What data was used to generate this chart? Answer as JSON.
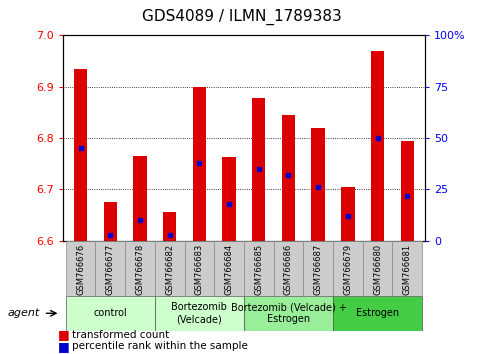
{
  "title": "GDS4089 / ILMN_1789383",
  "samples": [
    "GSM766676",
    "GSM766677",
    "GSM766678",
    "GSM766682",
    "GSM766683",
    "GSM766684",
    "GSM766685",
    "GSM766686",
    "GSM766687",
    "GSM766679",
    "GSM766680",
    "GSM766681"
  ],
  "transformed_count": [
    6.935,
    6.675,
    6.765,
    6.655,
    6.9,
    6.763,
    6.878,
    6.845,
    6.82,
    6.705,
    6.97,
    6.795
  ],
  "percentile_rank": [
    45,
    3,
    10,
    3,
    38,
    18,
    35,
    32,
    26,
    12,
    50,
    22
  ],
  "ylim_left": [
    6.6,
    7.0
  ],
  "ylim_right": [
    0,
    100
  ],
  "yticks_left": [
    6.6,
    6.7,
    6.8,
    6.9,
    7.0
  ],
  "yticks_right": [
    0,
    25,
    50,
    75,
    100
  ],
  "yticklabels_right": [
    "0",
    "25",
    "50",
    "75",
    "100%"
  ],
  "bar_color": "#dd0000",
  "percentile_color": "#0000cc",
  "groups": [
    {
      "label": "control",
      "start": 0,
      "end": 3,
      "color": "#ccffcc"
    },
    {
      "label": "Bortezomib\n(Velcade)",
      "start": 3,
      "end": 6,
      "color": "#ccffcc"
    },
    {
      "label": "Bortezomib (Velcade) +\nEstrogen",
      "start": 6,
      "end": 9,
      "color": "#99ee99"
    },
    {
      "label": "Estrogen",
      "start": 9,
      "end": 12,
      "color": "#44cc44"
    }
  ],
  "agent_label": "agent",
  "legend_items": [
    {
      "label": "transformed count",
      "color": "#dd0000"
    },
    {
      "label": "percentile rank within the sample",
      "color": "#0000cc"
    }
  ],
  "bar_width": 0.45,
  "tick_fontsize": 8,
  "title_fontsize": 11,
  "sample_fontsize": 6,
  "group_fontsize": 7
}
